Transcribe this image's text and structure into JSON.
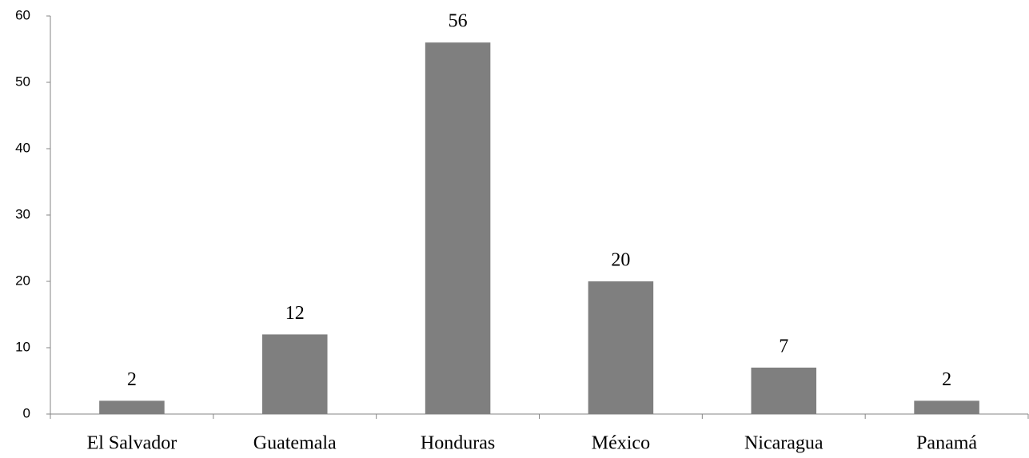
{
  "chart_data": {
    "type": "bar",
    "categories": [
      "El Salvador",
      "Guatemala",
      "Honduras",
      "México",
      "Nicaragua",
      "Panamá"
    ],
    "values": [
      2,
      12,
      56,
      20,
      7,
      2
    ],
    "color": "#7f7f7f",
    "ylim": [
      0,
      60
    ],
    "yticks": [
      0,
      10,
      20,
      30,
      40,
      50,
      60
    ],
    "grid": false
  }
}
